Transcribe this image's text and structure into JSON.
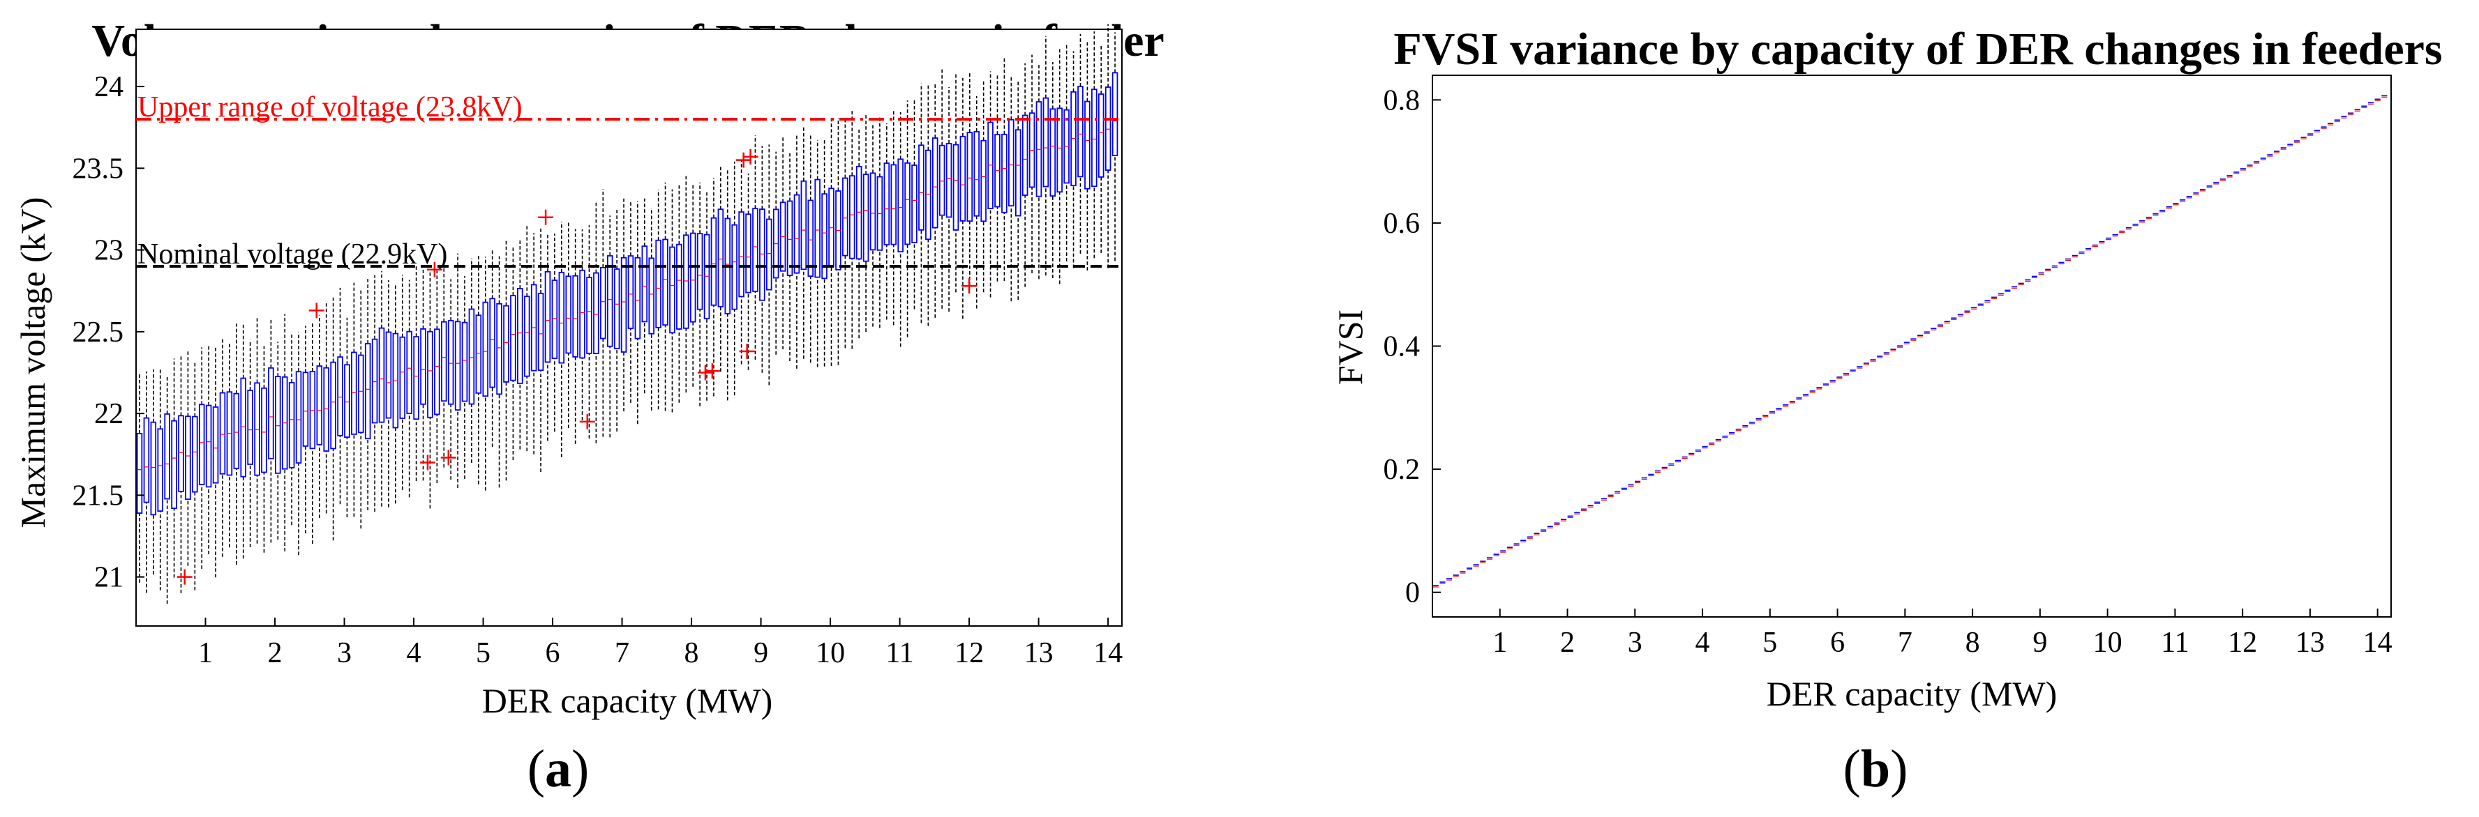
{
  "chart_data": [
    {
      "type": "box",
      "panel_label": "a",
      "title": "Voltage variance by capacity of DER changes in feeder",
      "xlabel": "DER capacity (MW)",
      "ylabel": "Maximum voltage (kV)",
      "xlim": [
        0,
        14.2
      ],
      "ylim": [
        20.7,
        24.35
      ],
      "xticks": [
        "1",
        "2",
        "3",
        "4",
        "5",
        "6",
        "7",
        "8",
        "9",
        "10",
        "11",
        "12",
        "13",
        "14"
      ],
      "yticks": [
        "21",
        "21.5",
        "22",
        "22.5",
        "23",
        "23.5",
        "24"
      ],
      "box_x_range": [
        0.05,
        14.1
      ],
      "box_count": 142,
      "median_trend": {
        "at_x0": 21.65,
        "at_x14": 23.74
      },
      "box_halfheight_kV": 0.26,
      "whisker_low_offset_kV": 0.75,
      "whisker_high_offset_kV": 0.6,
      "colors": {
        "box": "#0000ff",
        "whisker": "#000000",
        "outlier": "#ff0000"
      },
      "reference_lines": [
        {
          "label": "Upper range of voltage (23.8kV)",
          "y": 23.8,
          "color": "#ff0000"
        },
        {
          "label": "Nominal voltage (22.9kV)",
          "y": 22.9,
          "color": "#000000"
        }
      ],
      "outliers": [
        {
          "x": 0.7,
          "y": 21.0
        },
        {
          "x": 2.6,
          "y": 22.63
        },
        {
          "x": 4.2,
          "y": 21.7
        },
        {
          "x": 4.3,
          "y": 22.88
        },
        {
          "x": 4.5,
          "y": 21.73
        },
        {
          "x": 5.9,
          "y": 23.2
        },
        {
          "x": 6.5,
          "y": 21.95
        },
        {
          "x": 8.2,
          "y": 22.25
        },
        {
          "x": 8.3,
          "y": 22.26
        },
        {
          "x": 8.8,
          "y": 22.38
        },
        {
          "x": 8.75,
          "y": 23.55
        },
        {
          "x": 8.85,
          "y": 23.57
        },
        {
          "x": 12.0,
          "y": 22.78
        }
      ]
    },
    {
      "type": "box",
      "panel_label": "b",
      "title": "FVSI variance by capacity of DER changes in feeders",
      "xlabel": "DER capacity (MW)",
      "ylabel": "FVSI",
      "xlim": [
        0,
        14.2
      ],
      "ylim": [
        -0.04,
        0.84
      ],
      "xticks": [
        "1",
        "2",
        "3",
        "4",
        "5",
        "6",
        "7",
        "8",
        "9",
        "10",
        "11",
        "12",
        "13",
        "14"
      ],
      "yticks": [
        "0",
        "0.2",
        "0.4",
        "0.6",
        "0.8"
      ],
      "box_x_range": [
        0.05,
        14.1
      ],
      "box_count": 142,
      "fvsi_trend": {
        "at_x0": 0.007,
        "at_x14": 0.8
      },
      "colors": {
        "box": "#0000ff",
        "median": "#ff0000"
      }
    }
  ]
}
